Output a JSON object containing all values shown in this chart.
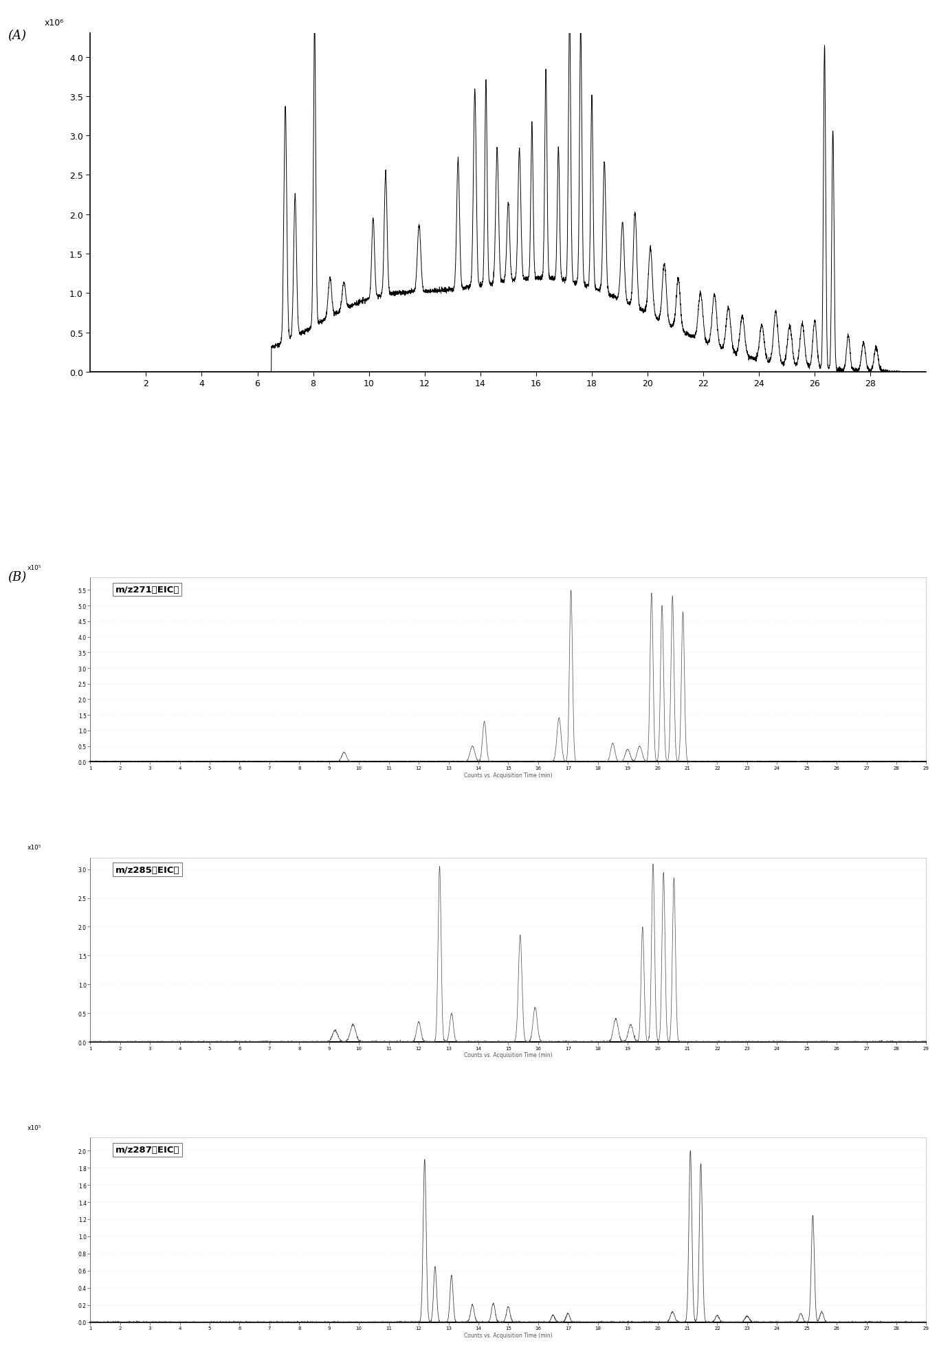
{
  "panel_A": {
    "label": "(A)",
    "ylabel_scale": "x10⁶",
    "yticks": [
      0,
      0.5,
      1.0,
      1.5,
      2.0,
      2.5,
      3.0,
      3.5,
      4.0
    ],
    "xlim": [
      0,
      30
    ],
    "ylim": [
      0,
      4.3
    ],
    "xticks": [
      2,
      4,
      6,
      8,
      10,
      12,
      14,
      16,
      18,
      20,
      22,
      24,
      26,
      28
    ]
  },
  "panel_B_label": "(B)",
  "panel_B1": {
    "title": "m/z271的EIC图",
    "xlabel": "Counts vs. Acquisition Time (min)",
    "ylabel_scale": "x10⁵",
    "yticks": [
      0,
      0.5,
      1.0,
      1.5,
      2.0,
      2.5,
      3.0,
      3.5,
      4.0,
      4.5,
      5.0,
      5.5
    ],
    "xlim": [
      1,
      29
    ],
    "ylim": [
      0,
      5.9
    ],
    "xticks": [
      1,
      2,
      3,
      4,
      5,
      6,
      7,
      8,
      9,
      10,
      11,
      12,
      13,
      14,
      15,
      16,
      17,
      18,
      19,
      20,
      21,
      22,
      23,
      24,
      25,
      26,
      27,
      28,
      29
    ]
  },
  "panel_B2": {
    "title": "m/z285的EIC图",
    "xlabel": "Counts vs. Acquisition Time (min)",
    "ylabel_scale": "x10⁵",
    "yticks": [
      0,
      0.5,
      1.0,
      1.5,
      2.0,
      2.5,
      3.0
    ],
    "xlim": [
      1,
      29
    ],
    "ylim": [
      0,
      3.2
    ],
    "xticks": [
      1,
      2,
      3,
      4,
      5,
      6,
      7,
      8,
      9,
      10,
      11,
      12,
      13,
      14,
      15,
      16,
      17,
      18,
      19,
      20,
      21,
      22,
      23,
      24,
      25,
      26,
      27,
      28,
      29
    ]
  },
  "panel_B3": {
    "title": "m/z287的EIC图",
    "xlabel": "Counts vs. Acquisition Time (min)",
    "ylabel_scale": "x10⁵",
    "yticks": [
      0,
      0.2,
      0.4,
      0.6,
      0.8,
      1.0,
      1.2,
      1.4,
      1.6,
      1.8,
      2.0
    ],
    "xlim": [
      1,
      29
    ],
    "ylim": [
      0,
      2.15
    ],
    "xticks": [
      1,
      2,
      3,
      4,
      5,
      6,
      7,
      8,
      9,
      10,
      11,
      12,
      13,
      14,
      15,
      16,
      17,
      18,
      19,
      20,
      21,
      22,
      23,
      24,
      25,
      26,
      27,
      28,
      29
    ]
  }
}
